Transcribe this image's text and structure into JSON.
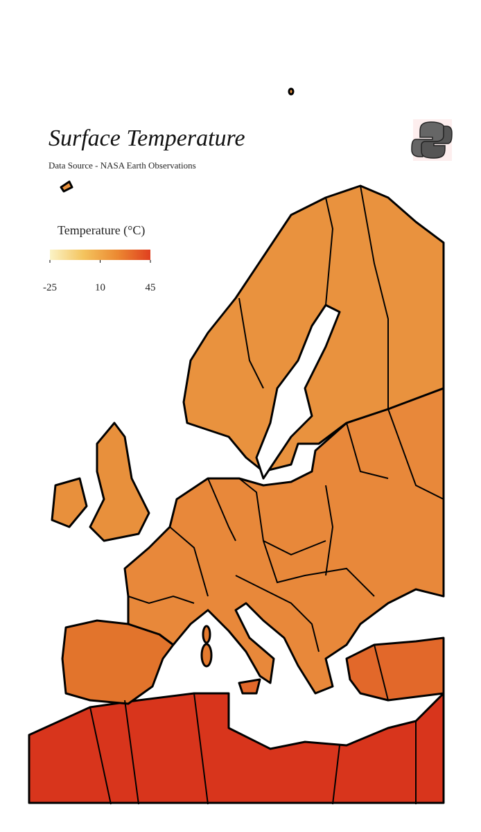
{
  "title": "Surface Temperature",
  "subtitle": "Data Source - NASA Earth Observations",
  "legend": {
    "title": "Temperature (°C)",
    "range": [
      -25,
      45
    ],
    "ticks": [
      -25,
      10,
      45
    ],
    "colors": [
      "#fbf3c6",
      "#f4c45e",
      "#ec8a32",
      "#e0401f"
    ]
  }
}
